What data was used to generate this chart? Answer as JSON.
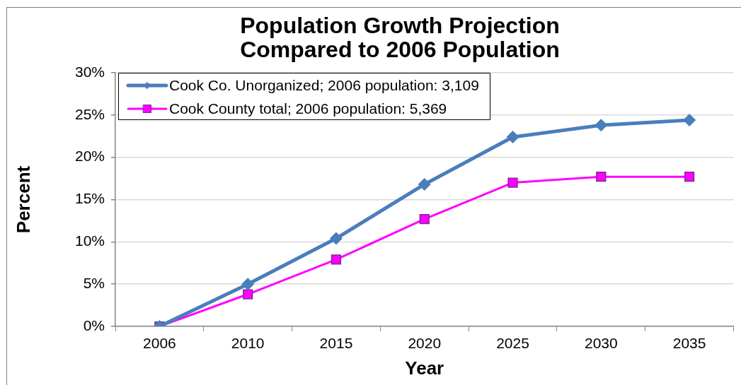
{
  "chart_data": {
    "type": "line",
    "title": "Population Growth Projection\nCompared to 2006 Population",
    "xlabel": "Year",
    "ylabel": "Percent",
    "categories": [
      "2006",
      "2010",
      "2015",
      "2020",
      "2025",
      "2030",
      "2035"
    ],
    "series": [
      {
        "name": "Cook Co. Unorganized; 2006 population: 3,109",
        "color": "#4a7ebb",
        "marker": "diamond",
        "values": [
          0,
          5.0,
          10.4,
          16.8,
          22.4,
          23.8,
          24.4
        ]
      },
      {
        "name": "Cook County total; 2006 population: 5,369",
        "color": "#ff00ff",
        "marker": "square",
        "values": [
          0,
          3.8,
          7.9,
          12.7,
          17.0,
          17.7,
          17.7
        ]
      }
    ],
    "ylim": [
      0,
      30
    ],
    "yticks": [
      {
        "value": 0,
        "label": "0%"
      },
      {
        "value": 5,
        "label": "5%"
      },
      {
        "value": 10,
        "label": "10%"
      },
      {
        "value": 15,
        "label": "15%"
      },
      {
        "value": 20,
        "label": "20%"
      },
      {
        "value": 25,
        "label": "25%"
      },
      {
        "value": 30,
        "label": "30%"
      }
    ],
    "grid": "y",
    "legend": "top left"
  }
}
